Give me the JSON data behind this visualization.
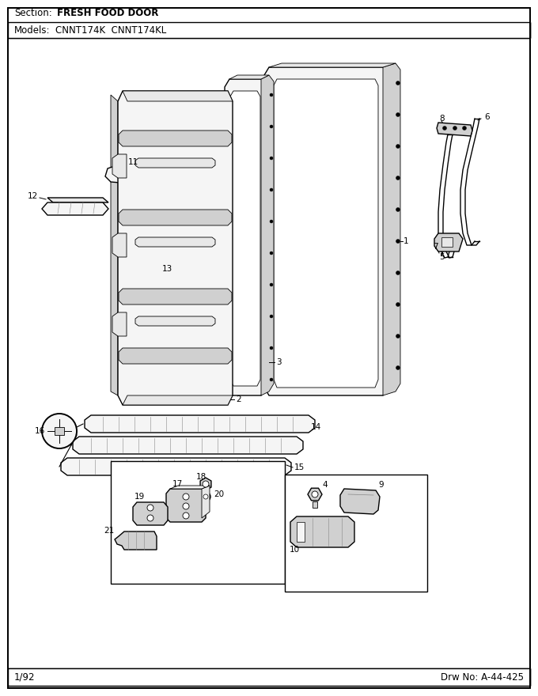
{
  "section_label": "Section:",
  "section_text": "FRESH FOOD DOOR",
  "models_label": "Models:",
  "models_text": "CNNT174K  CNNT174KL",
  "footer_date": "1/92",
  "footer_drw": "Drw No: A-44-425",
  "bg_color": "#ffffff",
  "fig_width": 6.8,
  "fig_height": 8.8,
  "dpi": 100,
  "lw_main": 1.0,
  "lw_light": 0.6,
  "lw_thick": 1.4,
  "fc_white": "#ffffff",
  "fc_light": "#f5f5f5",
  "fc_mid": "#e8e8e8",
  "fc_dark": "#d0d0d0",
  "text_fs": 8.5,
  "small_fs": 7.5
}
